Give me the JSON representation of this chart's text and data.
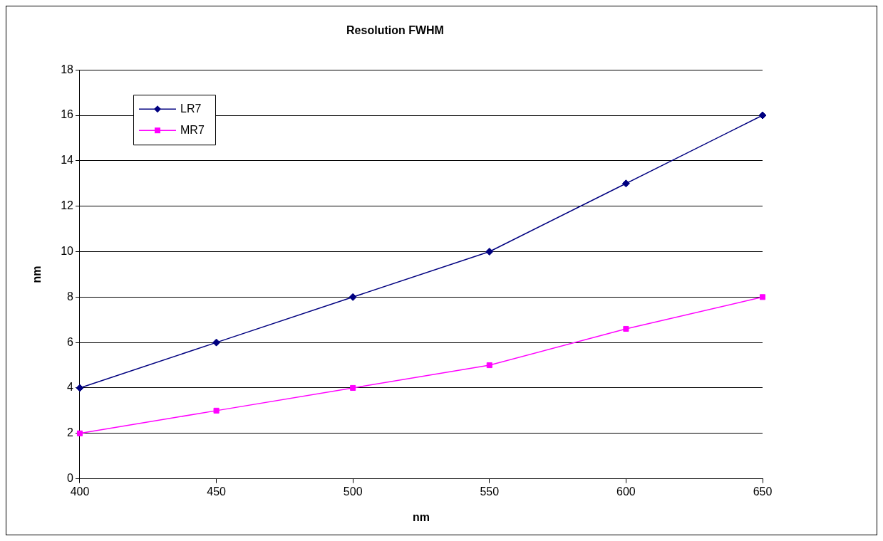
{
  "chart_data": {
    "type": "line",
    "title": "Resolution FWHM",
    "xlabel": "nm",
    "ylabel": "nm",
    "x": [
      400,
      450,
      500,
      550,
      600,
      650
    ],
    "series": [
      {
        "name": "LR7",
        "color": "#000080",
        "marker": "diamond",
        "values": [
          4,
          6,
          8,
          10,
          13,
          16
        ]
      },
      {
        "name": "MR7",
        "color": "#ff00ff",
        "marker": "square",
        "values": [
          2,
          3,
          4,
          5,
          6.6,
          8
        ]
      }
    ],
    "xlim": [
      400,
      650
    ],
    "xticks": [
      400,
      450,
      500,
      550,
      600,
      650
    ],
    "ylim": [
      0,
      18
    ],
    "yticks": [
      0,
      2,
      4,
      6,
      8,
      10,
      12,
      14,
      16,
      18
    ],
    "grid": "y",
    "legend": "top left",
    "line_style": "solid"
  }
}
